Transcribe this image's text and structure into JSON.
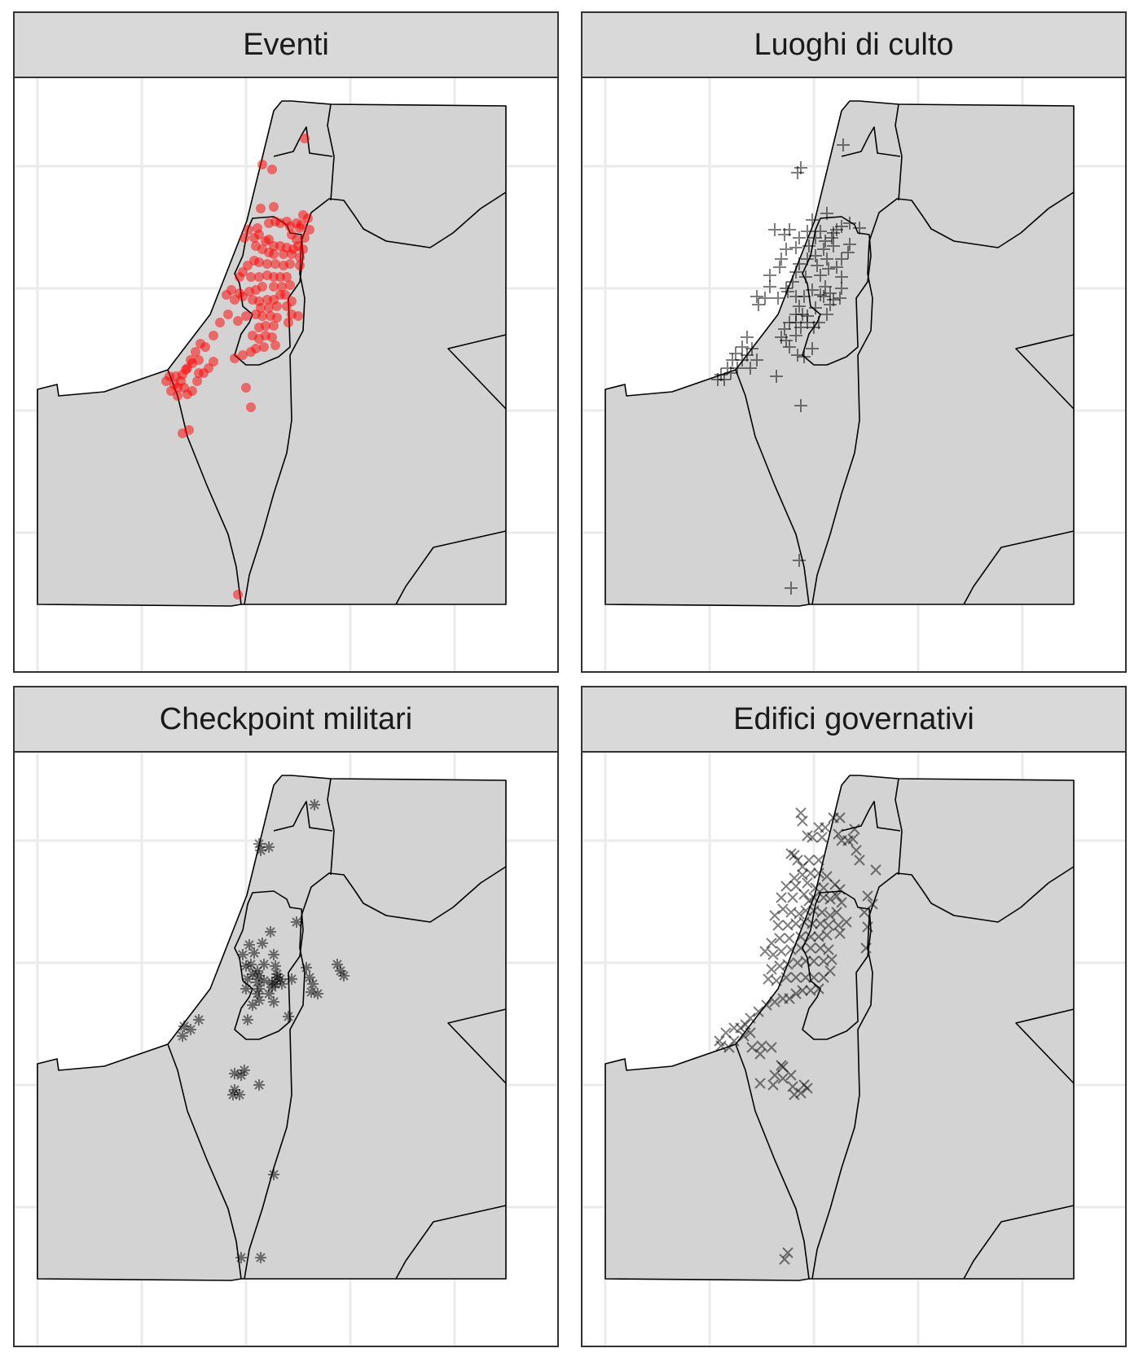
{
  "colors": {
    "land": "#d3d3d3",
    "border": "#000000",
    "strip": "#d9d9d9",
    "grid": "#ebebeb",
    "event_point": "#ff0000",
    "marker": "#000000"
  },
  "panels": [
    {
      "title": "Eventi",
      "marker": "filled-circle",
      "color": "#ff0000"
    },
    {
      "title": "Luoghi di culto",
      "marker": "plus",
      "color": "#000000"
    },
    {
      "title": "Checkpoint militari",
      "marker": "asterisk",
      "color": "#000000"
    },
    {
      "title": "Edifici governativi",
      "marker": "cross",
      "color": "#000000"
    }
  ]
}
